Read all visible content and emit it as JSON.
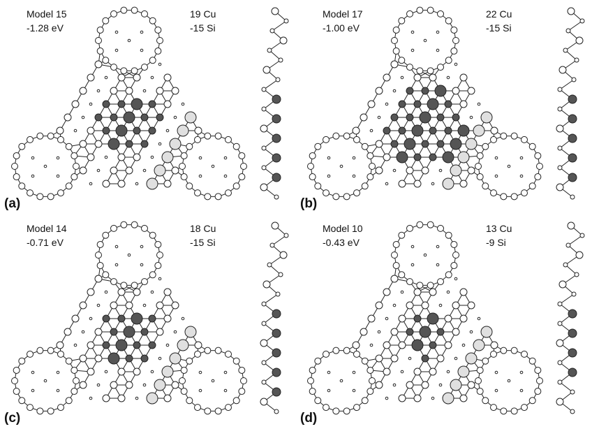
{
  "panels": [
    {
      "label": "(a)",
      "model": "Model 15",
      "energy": "-1.28 eV",
      "cu": "19 Cu",
      "si": "-15 Si"
    },
    {
      "label": "(b)",
      "model": "Model 17",
      "energy": "-1.00 eV",
      "cu": "22 Cu",
      "si": "-15 Si"
    },
    {
      "label": "(c)",
      "model": "Model 14",
      "energy": "-0.71 eV",
      "cu": "18 Cu",
      "si": "-15 Si"
    },
    {
      "label": "(d)",
      "model": "Model 10",
      "energy": "-0.43 eV",
      "cu": "13 Cu",
      "si": "-9 Si"
    }
  ]
}
